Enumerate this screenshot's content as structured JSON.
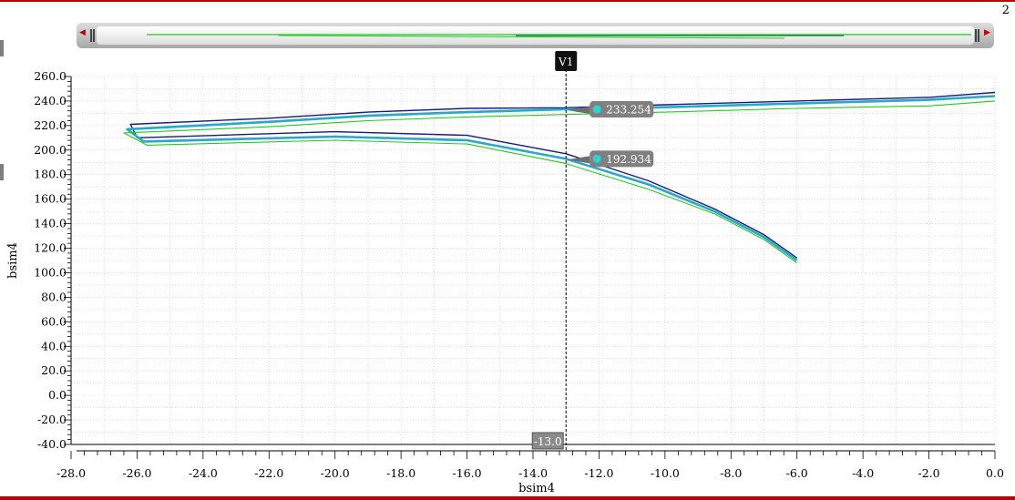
{
  "window": {
    "page_number": "2"
  },
  "chart_data": {
    "type": "line",
    "xlabel": "bsim4",
    "ylabel": "bsim4",
    "xlim": [
      -28.0,
      0.0
    ],
    "ylim": [
      -40.0,
      260.0
    ],
    "x_ticks": [
      -28.0,
      -26.0,
      -24.0,
      -22.0,
      -20.0,
      -18.0,
      -16.0,
      -14.0,
      -12.0,
      -10.0,
      -8.0,
      -6.0,
      -4.0,
      -2.0,
      0.0
    ],
    "x_tick_labels": [
      "-28.0",
      "-26.0",
      "-24.0",
      "-22.0",
      "-20.0",
      "-18.0",
      "-16.0",
      "-14.0",
      "-12.0",
      "-10.0",
      "-8.0",
      "-6.0",
      "-4.0",
      "-2.0",
      "0.0"
    ],
    "y_ticks": [
      260.0,
      240.0,
      220.0,
      200.0,
      180.0,
      160.0,
      140.0,
      120.0,
      100.0,
      80.0,
      60.0,
      40.0,
      20.0,
      0.0,
      -20.0,
      -40.0
    ],
    "y_tick_labels": [
      "260.0",
      "240.0",
      "220.0",
      "200.0",
      "180.0",
      "160.0",
      "140.0",
      "120.0",
      "100.0",
      "80.0",
      "60.0",
      "40.0",
      "20.0",
      "0.0",
      "-20.0",
      "-40.0"
    ],
    "grid": true,
    "series": [
      {
        "color": "#1a1a80",
        "x": [
          -6.0,
          -7.0,
          -8.5,
          -10.5,
          -13.0,
          -16.0,
          -20.0,
          -26.0,
          -26.2,
          -22.0,
          -19.0,
          -16.0,
          -13.0,
          -10.0,
          -6.0,
          -2.0,
          0.0
        ],
        "y": [
          112,
          131,
          152,
          175,
          197,
          212,
          215,
          210,
          221,
          226,
          231,
          234,
          234.5,
          237,
          240,
          243,
          247
        ]
      },
      {
        "color": "#2aa8c8",
        "x": [
          -6.0,
          -7.0,
          -8.5,
          -10.5,
          -13.0,
          -16.0,
          -20.0,
          -25.8,
          -26.3,
          -22.0,
          -19.0,
          -16.0,
          -13.0,
          -10.0,
          -6.0,
          -2.0,
          0.0
        ],
        "y": [
          110,
          129,
          150,
          172,
          192.9,
          208,
          211,
          207,
          217,
          223,
          228,
          231,
          233.3,
          235,
          238,
          241,
          244
        ]
      },
      {
        "color": "#22cc22",
        "x": [
          -6.0,
          -7.0,
          -8.5,
          -10.5,
          -13.0,
          -16.0,
          -20.0,
          -25.7,
          -26.4,
          -22.0,
          -19.0,
          -16.0,
          -13.0,
          -10.0,
          -6.0,
          -2.0,
          0.0
        ],
        "y": [
          108,
          127,
          148,
          168,
          189,
          205,
          208,
          204,
          214,
          219,
          224,
          227,
          229,
          231,
          234,
          236,
          240
        ]
      }
    ],
    "marker": {
      "name": "V1",
      "x": -13.0,
      "x_label": "-13.0",
      "readouts": [
        {
          "label": "233.254",
          "y": 233.254
        },
        {
          "label": "192.934",
          "y": 192.934
        }
      ]
    }
  }
}
